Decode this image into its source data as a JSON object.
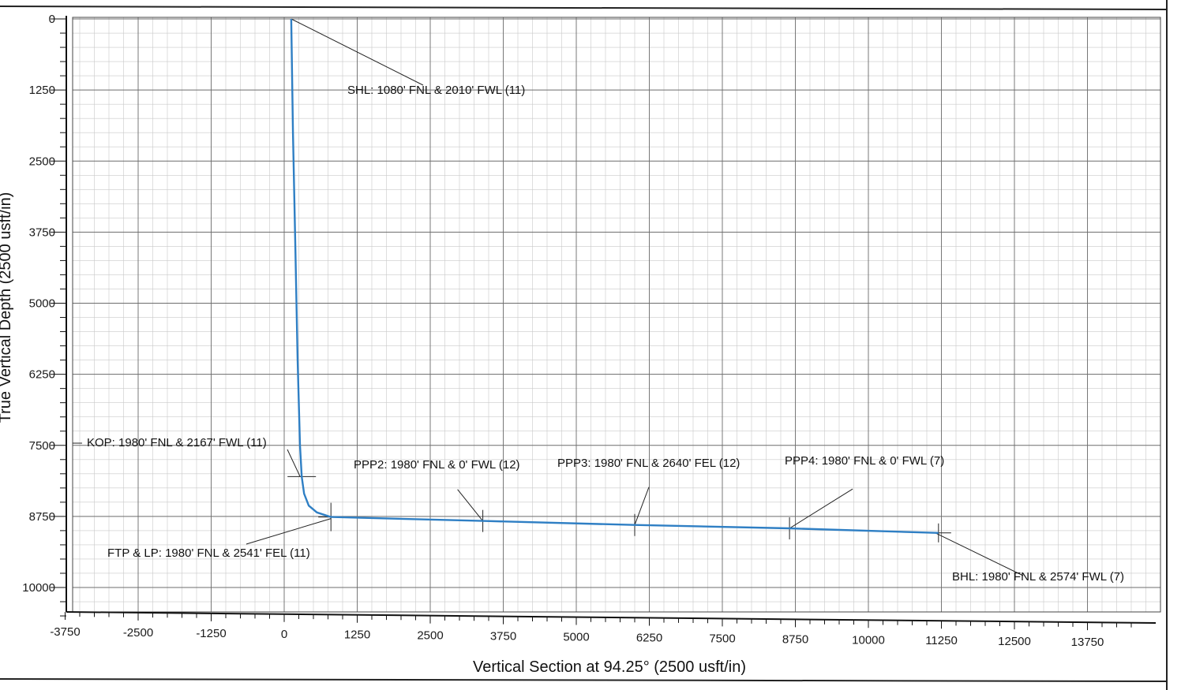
{
  "chart_data": {
    "type": "line",
    "title": "",
    "xlabel": "Vertical Section at 94.25° (2500 usft/in)",
    "ylabel": "True Vertical Depth (2500 usft/in)",
    "xlim": [
      -3750,
      15000
    ],
    "ylim": [
      0,
      10700
    ],
    "y_inverted": true,
    "grid": true,
    "x_ticks": [
      -3750,
      -2500,
      -1250,
      0,
      1250,
      2500,
      3750,
      5000,
      6250,
      7500,
      8750,
      10000,
      11250,
      12500,
      13750
    ],
    "y_ticks": [
      0,
      1250,
      2500,
      3750,
      5000,
      6250,
      7500,
      8750,
      10000
    ],
    "series": [
      {
        "color": "#2f7fc4",
        "points": [
          [
            120,
            0
          ],
          [
            150,
            2000
          ],
          [
            190,
            4000
          ],
          [
            230,
            6000
          ],
          [
            270,
            7500
          ],
          [
            300,
            8050
          ],
          [
            340,
            8350
          ],
          [
            420,
            8560
          ],
          [
            560,
            8680
          ],
          [
            800,
            8760
          ],
          [
            3400,
            8830
          ],
          [
            6000,
            8900
          ],
          [
            8650,
            8960
          ],
          [
            11200,
            9040
          ]
        ]
      }
    ],
    "annotations": [
      {
        "text": "SHL: 1080' FNL & 2010' FWL (11)",
        "x": 120,
        "y": 0
      },
      {
        "text": "KOP: 1980' FNL & 2167' FWL (11)",
        "x": 300,
        "y": 8050
      },
      {
        "text": "FTP & LP: 1980' FNL & 2541' FEL (11)",
        "x": 800,
        "y": 8760
      },
      {
        "text": "PPP2: 1980' FNL & 0' FWL (12)",
        "x": 3400,
        "y": 8830
      },
      {
        "text": "PPP3: 1980' FNL & 2640' FEL (12)",
        "x": 6000,
        "y": 8900
      },
      {
        "text": "PPP4: 1980' FNL & 0' FWL (7)",
        "x": 8650,
        "y": 8960
      },
      {
        "text": "BHL: 1980' FNL & 2574' FWL (7)",
        "x": 11200,
        "y": 9040
      }
    ]
  }
}
